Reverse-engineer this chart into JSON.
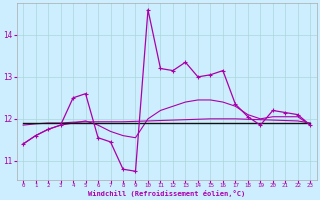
{
  "xlabel": "Windchill (Refroidissement éolien,°C)",
  "bg_color": "#cceeff",
  "grid_color": "#aad8d8",
  "line_color": "#aa00aa",
  "black_line_color": "#111111",
  "hours": [
    0,
    1,
    2,
    3,
    4,
    5,
    6,
    7,
    8,
    9,
    10,
    11,
    12,
    13,
    14,
    15,
    16,
    17,
    18,
    19,
    20,
    21,
    22,
    23
  ],
  "jagged": [
    11.4,
    11.6,
    11.75,
    11.85,
    12.5,
    12.6,
    11.55,
    11.45,
    10.8,
    10.75,
    14.6,
    13.2,
    13.15,
    13.35,
    13.0,
    13.05,
    13.15,
    12.35,
    12.05,
    11.85,
    12.2,
    12.15,
    12.1,
    11.85
  ],
  "smooth_upper": [
    11.4,
    11.6,
    11.75,
    11.85,
    11.9,
    11.95,
    11.85,
    11.7,
    11.6,
    11.55,
    12.0,
    12.2,
    12.3,
    12.4,
    12.45,
    12.45,
    12.4,
    12.3,
    12.1,
    12.0,
    12.05,
    12.05,
    12.05,
    11.85
  ],
  "smooth_mid": [
    11.85,
    11.88,
    11.9,
    11.9,
    11.92,
    11.93,
    11.93,
    11.93,
    11.93,
    11.94,
    11.95,
    11.96,
    11.97,
    11.98,
    11.99,
    12.0,
    12.0,
    12.0,
    11.99,
    11.98,
    11.97,
    11.96,
    11.95,
    11.9
  ],
  "flat_line": [
    11.9,
    11.9,
    11.9,
    11.9,
    11.9,
    11.9,
    11.9,
    11.9,
    11.9,
    11.9,
    11.9,
    11.9,
    11.9,
    11.9,
    11.9,
    11.9,
    11.9,
    11.9,
    11.9,
    11.9,
    11.9,
    11.9,
    11.9,
    11.9
  ],
  "ylim": [
    10.55,
    14.75
  ],
  "yticks": [
    11,
    12,
    13,
    14
  ],
  "xticks": [
    0,
    1,
    2,
    3,
    4,
    5,
    6,
    7,
    8,
    9,
    10,
    11,
    12,
    13,
    14,
    15,
    16,
    17,
    18,
    19,
    20,
    21,
    22,
    23
  ]
}
